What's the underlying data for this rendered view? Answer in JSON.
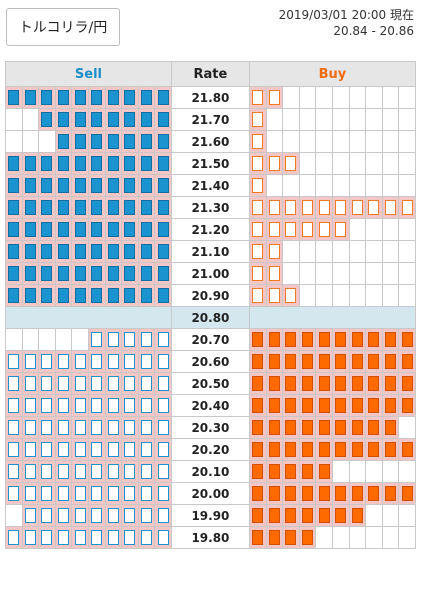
{
  "header": {
    "pair_label": "トルコリラ/円",
    "timestamp": "2019/03/01 20:00 現在",
    "rate_range": "20.84 - 20.86"
  },
  "columns": {
    "sell": "Sell",
    "rate": "Rate",
    "buy": "Buy"
  },
  "colors": {
    "sell": "#1a93cf",
    "buy": "#ff6a00",
    "highlight": "#f5c6c6",
    "current": "#d4e6ee"
  },
  "current_rate": "20.80",
  "rows": [
    {
      "rate": "21.80",
      "sell": 10,
      "sell_style": "fill",
      "buy": 2,
      "buy_style": "hollow"
    },
    {
      "rate": "21.70",
      "sell": 8,
      "sell_style": "fill",
      "buy": 1,
      "buy_style": "hollow"
    },
    {
      "rate": "21.60",
      "sell": 7,
      "sell_style": "fill",
      "buy": 1,
      "buy_style": "hollow"
    },
    {
      "rate": "21.50",
      "sell": 10,
      "sell_style": "fill",
      "buy": 3,
      "buy_style": "hollow"
    },
    {
      "rate": "21.40",
      "sell": 10,
      "sell_style": "fill",
      "buy": 1,
      "buy_style": "hollow"
    },
    {
      "rate": "21.30",
      "sell": 10,
      "sell_style": "fill",
      "buy": 10,
      "buy_style": "hollow"
    },
    {
      "rate": "21.20",
      "sell": 10,
      "sell_style": "fill",
      "buy": 6,
      "buy_style": "hollow"
    },
    {
      "rate": "21.10",
      "sell": 10,
      "sell_style": "fill",
      "buy": 2,
      "buy_style": "hollow"
    },
    {
      "rate": "21.00",
      "sell": 10,
      "sell_style": "fill",
      "buy": 2,
      "buy_style": "hollow"
    },
    {
      "rate": "20.90",
      "sell": 10,
      "sell_style": "fill",
      "buy": 3,
      "buy_style": "hollow"
    },
    {
      "rate": "20.70",
      "sell": 5,
      "sell_style": "hollow",
      "buy": 10,
      "buy_style": "fill"
    },
    {
      "rate": "20.60",
      "sell": 10,
      "sell_style": "hollow",
      "buy": 10,
      "buy_style": "fill"
    },
    {
      "rate": "20.50",
      "sell": 10,
      "sell_style": "hollow",
      "buy": 10,
      "buy_style": "fill"
    },
    {
      "rate": "20.40",
      "sell": 10,
      "sell_style": "hollow",
      "buy": 10,
      "buy_style": "fill"
    },
    {
      "rate": "20.30",
      "sell": 10,
      "sell_style": "hollow",
      "buy": 9,
      "buy_style": "fill"
    },
    {
      "rate": "20.20",
      "sell": 10,
      "sell_style": "hollow",
      "buy": 10,
      "buy_style": "fill"
    },
    {
      "rate": "20.10",
      "sell": 10,
      "sell_style": "hollow",
      "buy": 5,
      "buy_style": "fill"
    },
    {
      "rate": "20.00",
      "sell": 10,
      "sell_style": "hollow",
      "buy": 10,
      "buy_style": "fill"
    },
    {
      "rate": "19.90",
      "sell": 9,
      "sell_style": "hollow",
      "buy": 7,
      "buy_style": "fill"
    },
    {
      "rate": "19.80",
      "sell": 10,
      "sell_style": "hollow",
      "buy": 4,
      "buy_style": "fill"
    }
  ]
}
